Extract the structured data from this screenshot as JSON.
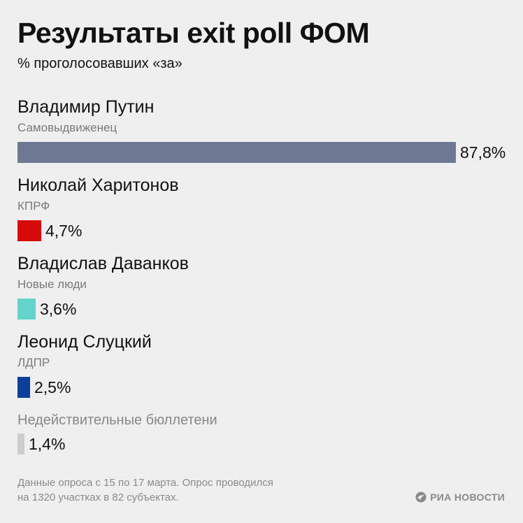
{
  "title": "Результаты exit poll ФОМ",
  "subtitle": "% проголосовавших «за»",
  "footnote": {
    "line1": "Данные опроса с 15 по 17 марта. Опрос проводился",
    "line2": "на 1320 участках в 82 субъектах."
  },
  "logo": {
    "icon": "ria-logo-icon",
    "text": "РИА НОВОСТИ"
  },
  "chart_data": {
    "type": "bar",
    "orientation": "horizontal",
    "title": "Результаты exit poll ФОМ",
    "subtitle": "% проголосовавших «за»",
    "xlim": [
      0,
      87.8
    ],
    "categories": [
      "Владимир Путин",
      "Николай Харитонов",
      "Владислав Даванков",
      "Леонид Слуцкий",
      "Недействительные бюллетени"
    ],
    "values": [
      87.8,
      4.7,
      3.6,
      2.5,
      1.4
    ],
    "items": [
      {
        "name": "Владимир Путин",
        "party": "Самовыдвиженец",
        "value": 87.8,
        "label": "87,8%",
        "color": "#6e7892"
      },
      {
        "name": "Николай Харитонов",
        "party": "КПРФ",
        "value": 4.7,
        "label": "4,7%",
        "color": "#d70a0a"
      },
      {
        "name": "Владислав Даванков",
        "party": "Новые люди",
        "value": 3.6,
        "label": "3,6%",
        "color": "#62d4cb"
      },
      {
        "name": "Леонид Слуцкий",
        "party": "ЛДПР",
        "value": 2.5,
        "label": "2,5%",
        "color": "#0d3f9a"
      },
      {
        "name": "Недействительные бюллетени",
        "party": "",
        "value": 1.4,
        "label": "1,4%",
        "color": "#cdcdcd"
      }
    ]
  }
}
